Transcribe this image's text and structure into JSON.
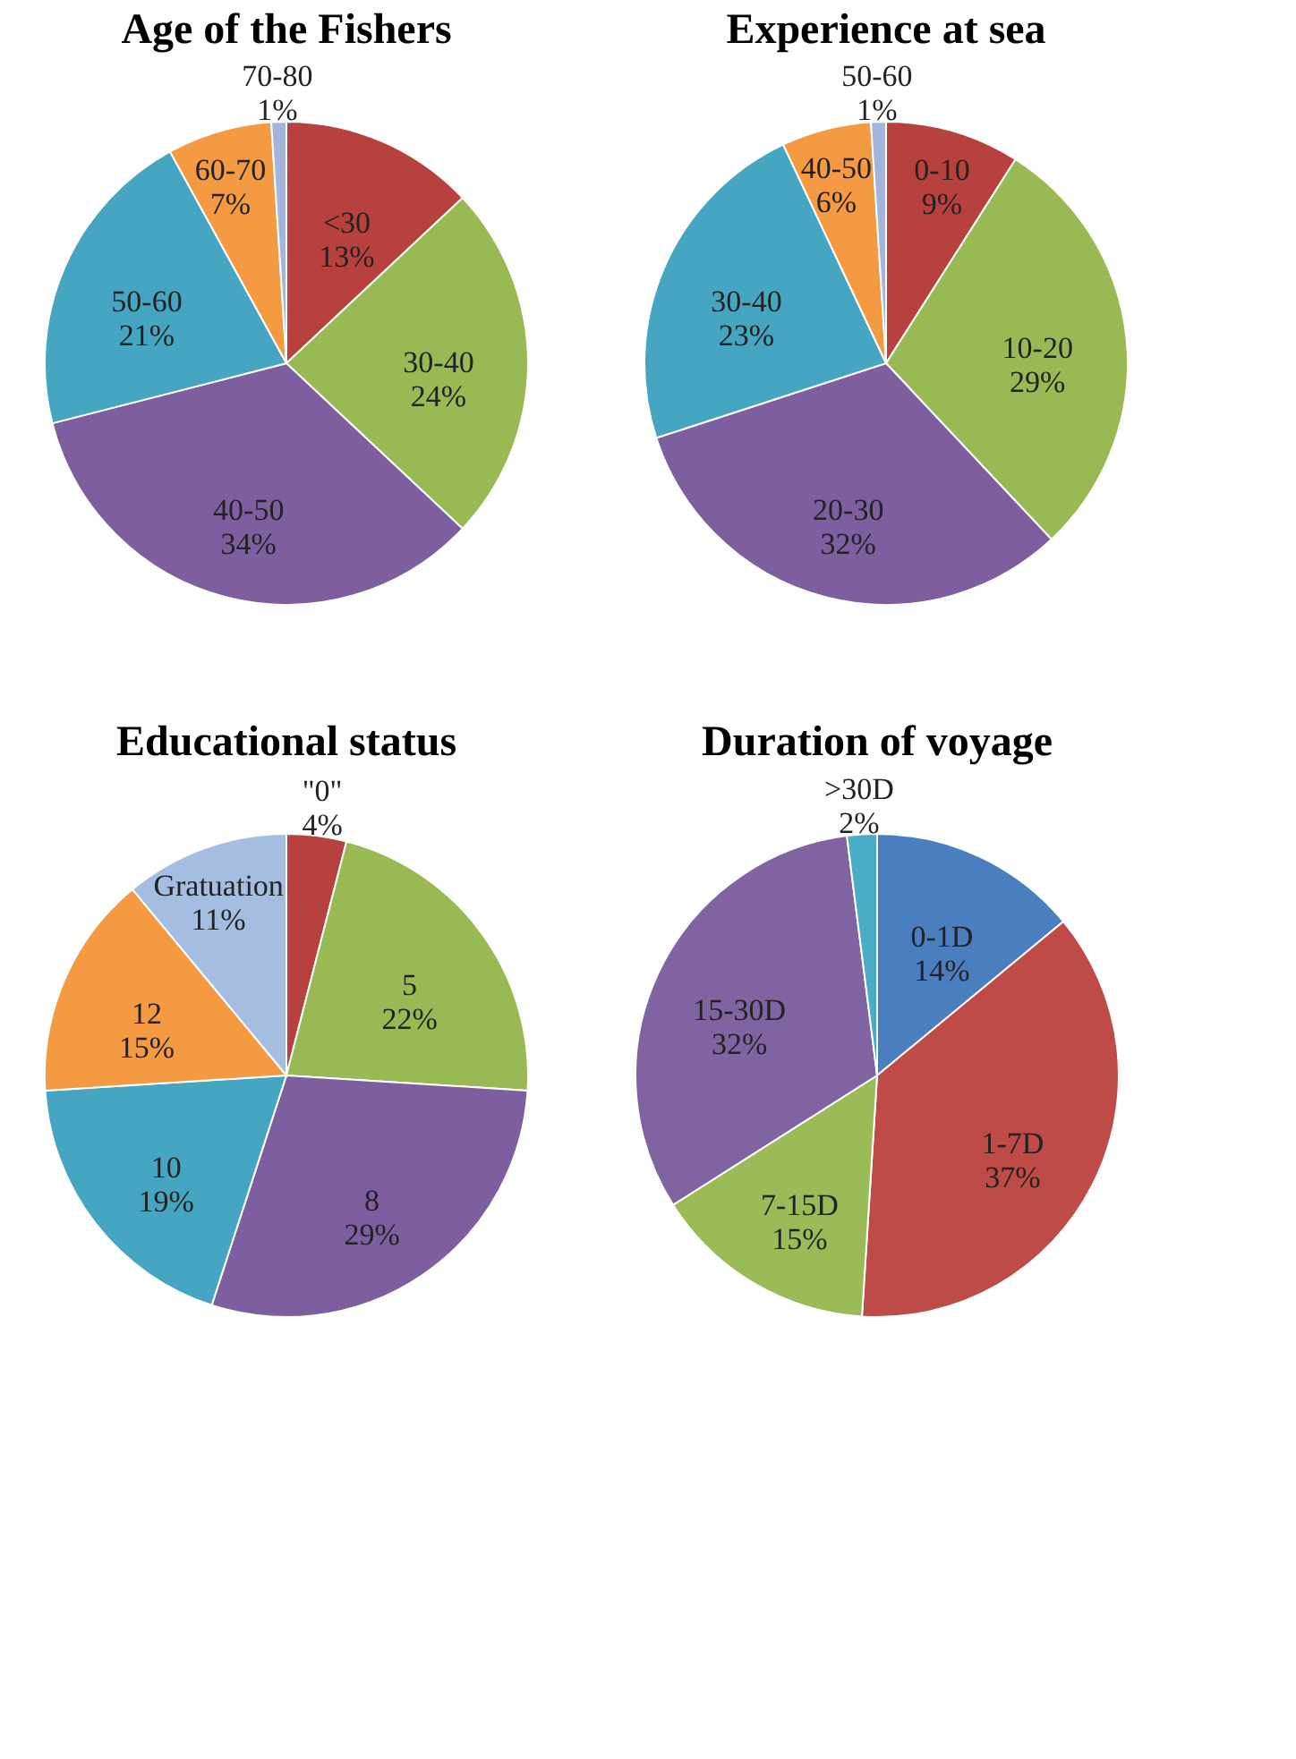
{
  "chart_data": [
    {
      "type": "pie",
      "title": "Age of  the Fishers",
      "categories": [
        "<30",
        "30-40",
        "40-50",
        "50-60",
        "60-70",
        "70-80"
      ],
      "values": [
        13,
        24,
        34,
        21,
        7,
        1
      ],
      "value_labels": [
        "13%",
        "24%",
        "34%",
        "21%",
        "7%",
        "1%"
      ],
      "colors": [
        "#b7413e",
        "#98b954",
        "#7d5fa0",
        "#46a5c0",
        "#f39a43",
        "#a4b4dc"
      ],
      "legend": false
    },
    {
      "type": "pie",
      "title": "Experience at sea",
      "categories": [
        "0-10",
        "10-20",
        "20-30",
        "30-40",
        "40-50",
        "50-60"
      ],
      "values": [
        9,
        29,
        32,
        23,
        6,
        1
      ],
      "value_labels": [
        "9%",
        "29%",
        "32%",
        "23%",
        "6%",
        "1%"
      ],
      "colors": [
        "#b7413e",
        "#98b954",
        "#7d5fa0",
        "#46a5c0",
        "#f39a43",
        "#a4b4dc"
      ],
      "legend": false
    },
    {
      "type": "pie",
      "title": "Educational status",
      "categories": [
        "\"0\"",
        "5",
        "8",
        "10",
        "12",
        "Gratuation"
      ],
      "values": [
        4,
        22,
        29,
        19,
        15,
        11
      ],
      "value_labels": [
        "4%",
        "22%",
        "29%",
        "19%",
        "15%",
        "11%"
      ],
      "colors": [
        "#b7413e",
        "#98b954",
        "#7d5fa0",
        "#46a5c0",
        "#f39a43",
        "#a4bde0"
      ],
      "legend": false
    },
    {
      "type": "pie",
      "title": "Duration of voyage",
      "categories": [
        "0-1D",
        "1-7D",
        "7-15D",
        "15-30D",
        ">30D"
      ],
      "values": [
        14,
        37,
        15,
        32,
        2
      ],
      "value_labels": [
        "14%",
        "37%",
        "15%",
        "32%",
        "2%"
      ],
      "colors": [
        "#4a7ebf",
        "#be4b48",
        "#9bbb59",
        "#8064a2",
        "#4bacc6"
      ],
      "legend": false
    }
  ]
}
